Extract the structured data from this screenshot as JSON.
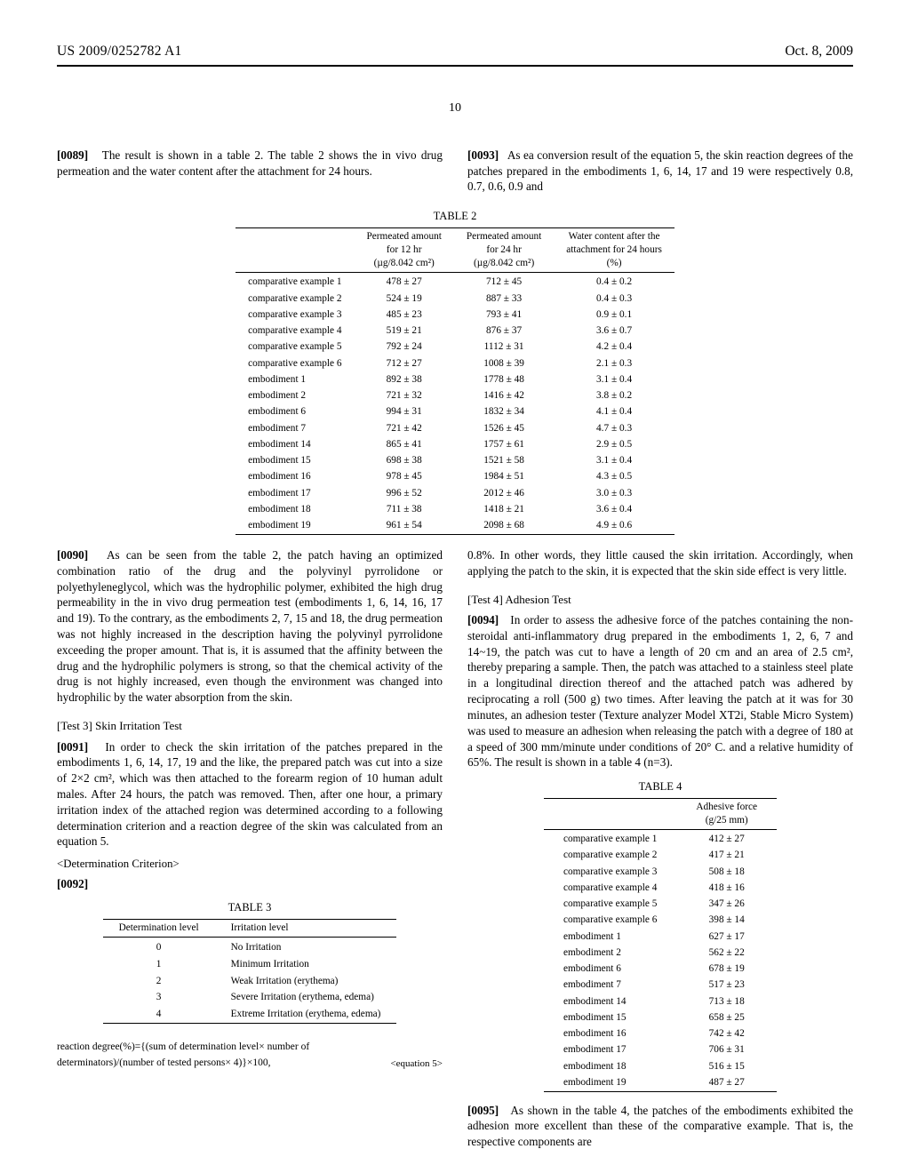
{
  "header": {
    "pubno": "US 2009/0252782 A1",
    "date": "Oct. 8, 2009"
  },
  "page_number": "10",
  "p89": {
    "num": "[0089]",
    "text": "The result is shown in a table 2. The table 2 shows the in vivo drug permeation and the water content after the attachment for 24 hours."
  },
  "t2": {
    "caption": "TABLE 2",
    "h1": "Permeated amount",
    "h1b": "for 12 hr",
    "h1c": "(µg/8.042 cm²)",
    "h2": "Permeated amount",
    "h2b": "for 24 hr",
    "h2c": "(µg/8.042 cm²)",
    "h3": "Water content after the",
    "h3b": "attachment for 24 hours",
    "h3c": "(%)",
    "rows": [
      {
        "label": "comparative example 1",
        "c1": "478 ± 27",
        "c2": "712 ± 45",
        "c3": "0.4 ± 0.2"
      },
      {
        "label": "comparative example 2",
        "c1": "524 ± 19",
        "c2": "887 ± 33",
        "c3": "0.4 ± 0.3"
      },
      {
        "label": "comparative example 3",
        "c1": "485 ± 23",
        "c2": "793 ± 41",
        "c3": "0.9 ± 0.1"
      },
      {
        "label": "comparative example 4",
        "c1": "519 ± 21",
        "c2": "876 ± 37",
        "c3": "3.6 ± 0.7"
      },
      {
        "label": "comparative example 5",
        "c1": "792 ± 24",
        "c2": "1112 ± 31",
        "c3": "4.2 ± 0.4"
      },
      {
        "label": "comparative example 6",
        "c1": "712 ± 27",
        "c2": "1008 ± 39",
        "c3": "2.1 ± 0.3"
      },
      {
        "label": "embodiment 1",
        "c1": "892 ± 38",
        "c2": "1778 ± 48",
        "c3": "3.1 ± 0.4"
      },
      {
        "label": "embodiment 2",
        "c1": "721 ± 32",
        "c2": "1416 ± 42",
        "c3": "3.8 ± 0.2"
      },
      {
        "label": "embodiment 6",
        "c1": "994 ± 31",
        "c2": "1832 ± 34",
        "c3": "4.1 ± 0.4"
      },
      {
        "label": "embodiment 7",
        "c1": "721 ± 42",
        "c2": "1526 ± 45",
        "c3": "4.7 ± 0.3"
      },
      {
        "label": "embodiment 14",
        "c1": "865 ± 41",
        "c2": "1757 ± 61",
        "c3": "2.9 ± 0.5"
      },
      {
        "label": "embodiment 15",
        "c1": "698 ± 38",
        "c2": "1521 ± 58",
        "c3": "3.1 ± 0.4"
      },
      {
        "label": "embodiment 16",
        "c1": "978 ± 45",
        "c2": "1984 ± 51",
        "c3": "4.3 ± 0.5"
      },
      {
        "label": "embodiment 17",
        "c1": "996 ± 52",
        "c2": "2012 ± 46",
        "c3": "3.0 ± 0.3"
      },
      {
        "label": "embodiment 18",
        "c1": "711 ± 38",
        "c2": "1418 ± 21",
        "c3": "3.6 ± 0.4"
      },
      {
        "label": "embodiment 19",
        "c1": "961 ± 54",
        "c2": "2098 ± 68",
        "c3": "4.9 ± 0.6"
      }
    ]
  },
  "p90": {
    "num": "[0090]",
    "text": "As can be seen from the table 2, the patch having an optimized combination ratio of the drug and the polyvinyl pyrrolidone or polyethyleneglycol, which was the hydrophilic polymer, exhibited the high drug permeability in the in vivo drug permeation test (embodiments 1, 6, 14, 16, 17 and 19). To the contrary, as the embodiments 2, 7, 15 and 18, the drug permeation was not highly increased in the description having the polyvinyl pyrrolidone exceeding the proper amount. That is, it is assumed that the affinity between the drug and the hydrophilic polymers is strong, so that the chemical activity of the drug is not highly increased, even though the environment was changed into hydrophilic by the water absorption from the skin."
  },
  "test3_title": "[Test 3] Skin Irritation Test",
  "p91": {
    "num": "[0091]",
    "text": "In order to check the skin irritation of the patches prepared in the embodiments 1, 6, 14, 17, 19 and the like, the prepared patch was cut into a size of 2×2 cm², which was then attached to the forearm region of 10 human adult males. After 24 hours, the patch was removed. Then, after one hour, a primary irritation index of the attached region was determined according to a following determination criterion and a reaction degree of the skin was calculated from an equation 5."
  },
  "criterion": "<Determination Criterion>",
  "p92num": "[0092]",
  "t3": {
    "caption": "TABLE 3",
    "h1": "Determination level",
    "h2": "Irritation level",
    "rows": [
      {
        "c1": "0",
        "c2": "No Irritation"
      },
      {
        "c1": "1",
        "c2": "Minimum Irritation"
      },
      {
        "c1": "2",
        "c2": "Weak Irritation (erythema)"
      },
      {
        "c1": "3",
        "c2": "Severe Irritation (erythema, edema)"
      },
      {
        "c1": "4",
        "c2": "Extreme Irritation (erythema, edema)"
      }
    ]
  },
  "eq5": {
    "body": "reaction degree(%)={(sum of determination level× number of determinators)/(number of tested persons× 4)}×100,",
    "tag": "<equation 5>"
  },
  "p93": {
    "num": "[0093]",
    "text": "As ea conversion result of the equation 5, the skin reaction degrees of the patches prepared in the embodiments 1, 6, 14, 17 and 19 were respectively 0.8, 0.7, 0.6, 0.9 and"
  },
  "p93b": "0.8%. In other words, they little caused the skin irritation. Accordingly, when applying the patch to the skin, it is expected that the skin side effect is very little.",
  "test4_title": "[Test 4] Adhesion Test",
  "p94": {
    "num": "[0094]",
    "text": "In order to assess the adhesive force of the patches containing the non-steroidal anti-inflammatory drug prepared in the embodiments 1, 2, 6, 7 and 14~19, the patch was cut to have a length of 20 cm and an area of 2.5 cm², thereby preparing a sample. Then, the patch was attached to a stainless steel plate in a longitudinal direction thereof and the attached patch was adhered by reciprocating a roll (500 g) two times. After leaving the patch at it was for 30 minutes, an adhesion tester (Texture analyzer Model XT2i, Stable Micro System) was used to measure an adhesion when releasing the patch with a degree of 180 at a speed of 300 mm/minute under conditions of 20° C. and a relative humidity of 65%. The result is shown in a table 4 (n=3)."
  },
  "t4": {
    "caption": "TABLE 4",
    "h1": "Adhesive force",
    "h1b": "(g/25 mm)",
    "rows": [
      {
        "label": "comparative example 1",
        "c1": "412 ± 27"
      },
      {
        "label": "comparative example 2",
        "c1": "417 ± 21"
      },
      {
        "label": "comparative example 3",
        "c1": "508 ± 18"
      },
      {
        "label": "comparative example 4",
        "c1": "418 ± 16"
      },
      {
        "label": "comparative example 5",
        "c1": "347 ± 26"
      },
      {
        "label": "comparative example 6",
        "c1": "398 ± 14"
      },
      {
        "label": "embodiment 1",
        "c1": "627 ± 17"
      },
      {
        "label": "embodiment 2",
        "c1": "562 ± 22"
      },
      {
        "label": "embodiment 6",
        "c1": "678 ± 19"
      },
      {
        "label": "embodiment 7",
        "c1": "517 ± 23"
      },
      {
        "label": "embodiment 14",
        "c1": "713 ± 18"
      },
      {
        "label": "embodiment 15",
        "c1": "658 ± 25"
      },
      {
        "label": "embodiment 16",
        "c1": "742 ± 42"
      },
      {
        "label": "embodiment 17",
        "c1": "706 ± 31"
      },
      {
        "label": "embodiment 18",
        "c1": "516 ± 15"
      },
      {
        "label": "embodiment 19",
        "c1": "487 ± 27"
      }
    ]
  },
  "p95": {
    "num": "[0095]",
    "text": "As shown in the table 4, the patches of the embodiments exhibited the adhesion more excellent than these of the comparative example. That is, the respective components are"
  }
}
